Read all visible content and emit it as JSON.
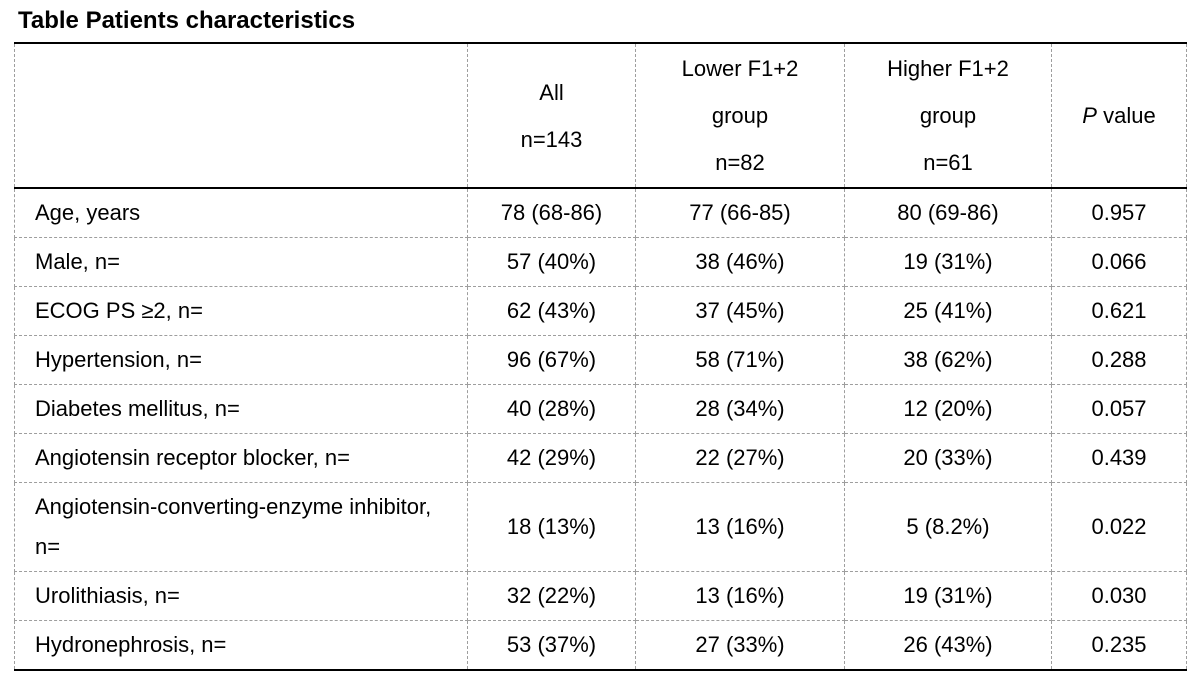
{
  "page_title": "Table Patients characteristics",
  "table": {
    "header": {
      "stub": "",
      "all": {
        "line1": "All",
        "line2": "n=143"
      },
      "lower": {
        "line1": "Lower F1+2",
        "line2": "group",
        "line3": "n=82"
      },
      "higher": {
        "line1": "Higher F1+2",
        "line2": "group",
        "line3": "n=61"
      },
      "p_value": {
        "italic_part": "P",
        "normal_part": " value"
      }
    },
    "rows": [
      {
        "label": "Age, years",
        "all": "78 (68-86)",
        "lower": "77 (66-85)",
        "higher": "80 (69-86)",
        "p": "0.957"
      },
      {
        "label": "Male, n=",
        "all": "57 (40%)",
        "lower": "38 (46%)",
        "higher": "19 (31%)",
        "p": "0.066"
      },
      {
        "label": "ECOG PS ≥2, n=",
        "all": "62 (43%)",
        "lower": "37 (45%)",
        "higher": "25 (41%)",
        "p": "0.621"
      },
      {
        "label": "Hypertension, n=",
        "all": "96 (67%)",
        "lower": "58 (71%)",
        "higher": "38 (62%)",
        "p": "0.288"
      },
      {
        "label": "Diabetes mellitus, n=",
        "all": "40 (28%)",
        "lower": "28 (34%)",
        "higher": "12 (20%)",
        "p": "0.057"
      },
      {
        "label": "Angiotensin receptor blocker, n=",
        "all": "42 (29%)",
        "lower": "22 (27%)",
        "higher": "20 (33%)",
        "p": "0.439"
      },
      {
        "label": "Angiotensin-converting-enzyme inhibitor, n=",
        "all": "18 (13%)",
        "lower": "13 (16%)",
        "higher": "5 (8.2%)",
        "p": "0.022"
      },
      {
        "label": "Urolithiasis, n=",
        "all": "32 (22%)",
        "lower": "13 (16%)",
        "higher": "19 (31%)",
        "p": "0.030"
      },
      {
        "label": "Hydronephrosis, n=",
        "all": "53 (37%)",
        "lower": "27 (33%)",
        "higher": "26 (43%)",
        "p": "0.235"
      }
    ]
  },
  "colors": {
    "text": "#000000",
    "solid_border": "#000000",
    "dashed_border": "#9e9e9e",
    "background": "#ffffff"
  }
}
